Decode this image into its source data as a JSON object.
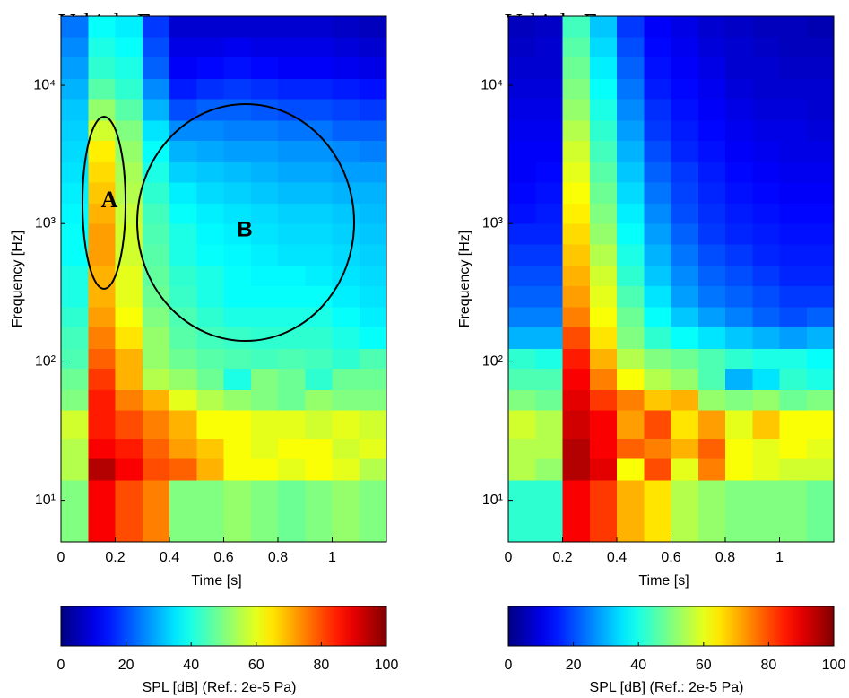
{
  "chart_data": [
    {
      "type": "heatmap",
      "title": "Vehicle F",
      "xlabel": "Time [s]",
      "ylabel": "Frequency [Hz]",
      "log_y": true,
      "colormap": "jet",
      "x_edges": [
        0,
        0.1,
        0.2,
        0.3,
        0.4,
        0.5,
        0.6,
        0.7,
        0.8,
        0.9,
        1,
        1.1,
        1.2
      ],
      "y_edges": [
        5,
        14,
        20,
        28,
        45,
        63,
        90,
        125,
        180,
        250,
        355,
        500,
        710,
        1000,
        1400,
        2000,
        2800,
        4000,
        5600,
        8000,
        11200,
        16000,
        22400,
        31600
      ],
      "z": [
        [
          50,
          88,
          80,
          75,
          50,
          50,
          52,
          50,
          48,
          50,
          52,
          50
        ],
        [
          55,
          95,
          88,
          80,
          78,
          70,
          62,
          62,
          60,
          62,
          60,
          55
        ],
        [
          55,
          88,
          85,
          78,
          72,
          68,
          62,
          60,
          62,
          62,
          58,
          60
        ],
        [
          58,
          85,
          80,
          75,
          70,
          62,
          62,
          60,
          60,
          58,
          60,
          58
        ],
        [
          50,
          85,
          75,
          70,
          60,
          55,
          52,
          50,
          48,
          52,
          50,
          50
        ],
        [
          48,
          82,
          70,
          55,
          52,
          48,
          40,
          50,
          48,
          42,
          48,
          48
        ],
        [
          45,
          78,
          70,
          52,
          48,
          46,
          45,
          44,
          45,
          44,
          42,
          45
        ],
        [
          44,
          75,
          65,
          52,
          46,
          44,
          43,
          42,
          42,
          42,
          40,
          38
        ],
        [
          42,
          72,
          62,
          50,
          45,
          42,
          40,
          40,
          40,
          40,
          38,
          36
        ],
        [
          40,
          70,
          60,
          48,
          43,
          40,
          38,
          38,
          38,
          38,
          36,
          35
        ],
        [
          40,
          70,
          60,
          47,
          42,
          40,
          38,
          37,
          37,
          36,
          35,
          34
        ],
        [
          38,
          72,
          58,
          46,
          40,
          38,
          37,
          36,
          35,
          35,
          34,
          33
        ],
        [
          38,
          72,
          58,
          45,
          40,
          37,
          36,
          35,
          34,
          34,
          33,
          32
        ],
        [
          37,
          70,
          57,
          44,
          38,
          36,
          35,
          34,
          33,
          33,
          32,
          31
        ],
        [
          36,
          68,
          55,
          42,
          36,
          34,
          33,
          32,
          31,
          31,
          30,
          30
        ],
        [
          35,
          66,
          54,
          40,
          33,
          32,
          31,
          30,
          29,
          29,
          28,
          28
        ],
        [
          34,
          64,
          52,
          38,
          30,
          29,
          28,
          28,
          27,
          27,
          26,
          25
        ],
        [
          33,
          58,
          50,
          35,
          26,
          26,
          25,
          25,
          24,
          24,
          22,
          22
        ],
        [
          32,
          52,
          46,
          30,
          20,
          22,
          22,
          21,
          20,
          20,
          19,
          18
        ],
        [
          30,
          46,
          42,
          26,
          15,
          17,
          18,
          17,
          16,
          16,
          15,
          14
        ],
        [
          28,
          42,
          40,
          22,
          12,
          13,
          14,
          13,
          12,
          12,
          11,
          10
        ],
        [
          26,
          40,
          38,
          20,
          10,
          10,
          11,
          10,
          10,
          10,
          9,
          8
        ],
        [
          24,
          38,
          36,
          18,
          8,
          8,
          8,
          8,
          8,
          8,
          7,
          6
        ]
      ],
      "xlim": [
        0,
        1.2
      ],
      "xticks": [
        0,
        0.2,
        0.4,
        0.6,
        0.8,
        1
      ],
      "ylim": [
        5,
        31600
      ],
      "yticks": [
        {
          "value": 10,
          "label": "10¹"
        },
        {
          "value": 100,
          "label": "10²"
        },
        {
          "value": 1000,
          "label": "10³"
        },
        {
          "value": 10000,
          "label": "10⁴"
        }
      ],
      "colorbar": {
        "label": "SPL [dB] (Ref.: 2e-5 Pa)",
        "lim": [
          0,
          100
        ],
        "ticks": [
          0,
          20,
          40,
          60,
          80,
          100
        ]
      },
      "annotations": [
        {
          "text": "A"
        },
        {
          "text": "B"
        }
      ]
    },
    {
      "type": "heatmap",
      "title": "Vehicle E",
      "xlabel": "Time [s]",
      "ylabel": "Frequency [Hz]",
      "log_y": true,
      "colormap": "jet",
      "x_edges": [
        0,
        0.1,
        0.2,
        0.3,
        0.4,
        0.5,
        0.6,
        0.7,
        0.8,
        0.9,
        1,
        1.1,
        1.2
      ],
      "y_edges": [
        5,
        14,
        20,
        28,
        45,
        63,
        90,
        125,
        180,
        250,
        355,
        500,
        710,
        1000,
        1400,
        2000,
        2800,
        4000,
        5600,
        8000,
        11200,
        16000,
        22400,
        31600
      ],
      "z": [
        [
          42,
          42,
          88,
          82,
          70,
          65,
          55,
          52,
          50,
          50,
          50,
          48
        ],
        [
          55,
          52,
          95,
          90,
          62,
          80,
          60,
          75,
          62,
          60,
          58,
          58
        ],
        [
          55,
          55,
          95,
          88,
          78,
          75,
          70,
          78,
          62,
          60,
          62,
          60
        ],
        [
          58,
          55,
          92,
          88,
          72,
          80,
          65,
          72,
          60,
          68,
          62,
          62
        ],
        [
          50,
          48,
          90,
          82,
          75,
          68,
          70,
          52,
          50,
          52,
          48,
          50
        ],
        [
          45,
          45,
          88,
          75,
          62,
          55,
          52,
          45,
          30,
          35,
          42,
          40
        ],
        [
          42,
          40,
          85,
          70,
          55,
          50,
          48,
          45,
          42,
          40,
          40,
          38
        ],
        [
          30,
          30,
          80,
          65,
          50,
          42,
          38,
          35,
          32,
          30,
          28,
          30
        ],
        [
          25,
          25,
          75,
          62,
          48,
          38,
          32,
          28,
          25,
          22,
          20,
          22
        ],
        [
          22,
          22,
          72,
          60,
          45,
          35,
          28,
          24,
          22,
          20,
          18,
          18
        ],
        [
          20,
          20,
          70,
          58,
          42,
          32,
          26,
          22,
          20,
          18,
          16,
          16
        ],
        [
          18,
          18,
          68,
          55,
          40,
          30,
          24,
          20,
          18,
          16,
          15,
          15
        ],
        [
          16,
          16,
          66,
          52,
          38,
          28,
          22,
          18,
          16,
          15,
          14,
          14
        ],
        [
          14,
          15,
          64,
          50,
          36,
          26,
          20,
          17,
          15,
          14,
          13,
          13
        ],
        [
          13,
          14,
          62,
          48,
          34,
          24,
          19,
          16,
          14,
          13,
          12,
          12
        ],
        [
          12,
          13,
          60,
          46,
          32,
          22,
          18,
          15,
          13,
          12,
          11,
          11
        ],
        [
          12,
          12,
          58,
          44,
          30,
          20,
          16,
          14,
          12,
          11,
          10,
          10
        ],
        [
          11,
          11,
          55,
          42,
          28,
          18,
          15,
          13,
          11,
          10,
          10,
          9
        ],
        [
          10,
          10,
          52,
          40,
          26,
          17,
          14,
          12,
          10,
          9,
          9,
          8
        ],
        [
          9,
          9,
          50,
          38,
          24,
          15,
          13,
          11,
          9,
          8,
          8,
          8
        ],
        [
          8,
          8,
          48,
          36,
          22,
          14,
          12,
          10,
          8,
          8,
          7,
          7
        ],
        [
          7,
          8,
          46,
          34,
          20,
          13,
          11,
          9,
          8,
          7,
          6,
          6
        ],
        [
          6,
          7,
          44,
          32,
          18,
          12,
          10,
          8,
          7,
          6,
          6,
          5
        ]
      ],
      "xlim": [
        0,
        1.2
      ],
      "xticks": [
        0,
        0.2,
        0.4,
        0.6,
        0.8,
        1
      ],
      "ylim": [
        5,
        31600
      ],
      "yticks": [
        {
          "value": 10,
          "label": "10¹"
        },
        {
          "value": 100,
          "label": "10²"
        },
        {
          "value": 1000,
          "label": "10³"
        },
        {
          "value": 10000,
          "label": "10⁴"
        }
      ],
      "colorbar": {
        "label": "SPL [dB] (Ref.: 2e-5 Pa)",
        "lim": [
          0,
          100
        ],
        "ticks": [
          0,
          20,
          40,
          60,
          80,
          100
        ]
      }
    }
  ]
}
